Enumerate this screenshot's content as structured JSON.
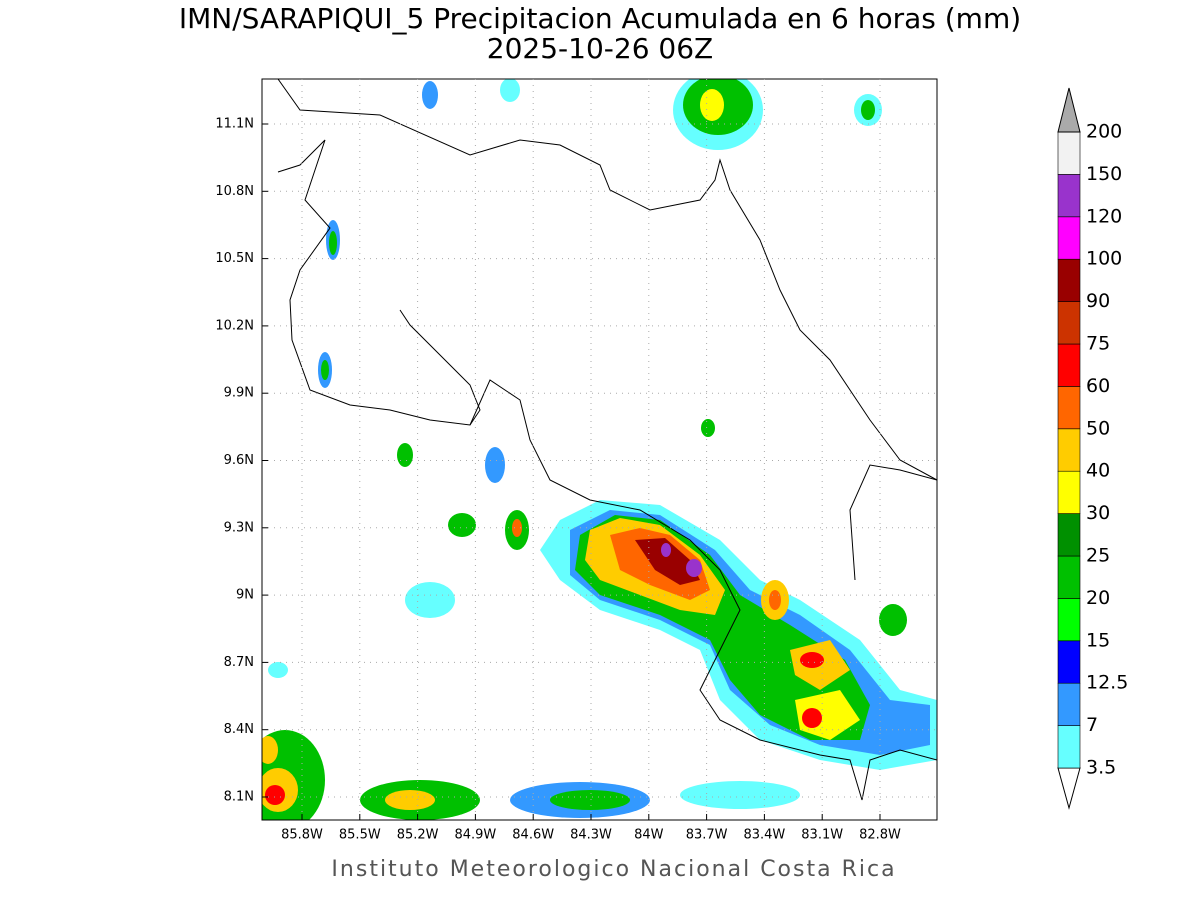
{
  "header": {
    "title": "IMN/SARAPIQUI_5 Precipitacion Acumulada en 6 horas (mm)",
    "subtitle": "2025-10-26 06Z"
  },
  "map": {
    "lon_ticks": [
      {
        "value": -85.8,
        "label": "85.8W"
      },
      {
        "value": -85.5,
        "label": "85.5W"
      },
      {
        "value": -85.2,
        "label": "85.2W"
      },
      {
        "value": -84.9,
        "label": "84.9W"
      },
      {
        "value": -84.6,
        "label": "84.6W"
      },
      {
        "value": -84.3,
        "label": "84.3W"
      },
      {
        "value": -84.0,
        "label": "84W"
      },
      {
        "value": -83.7,
        "label": "83.7W"
      },
      {
        "value": -83.4,
        "label": "83.4W"
      },
      {
        "value": -83.1,
        "label": "83.1W"
      },
      {
        "value": -82.8,
        "label": "82.8W"
      }
    ],
    "lat_ticks": [
      {
        "value": 11.1,
        "label": "11.1N"
      },
      {
        "value": 10.8,
        "label": "10.8N"
      },
      {
        "value": 10.5,
        "label": "10.5N"
      },
      {
        "value": 10.2,
        "label": "10.2N"
      },
      {
        "value": 9.9,
        "label": "9.9N"
      },
      {
        "value": 9.6,
        "label": "9.6N"
      },
      {
        "value": 9.3,
        "label": "9.3N"
      },
      {
        "value": 9.0,
        "label": "9N"
      },
      {
        "value": 8.7,
        "label": "8.7N"
      },
      {
        "value": 8.4,
        "label": "8.4N"
      },
      {
        "value": 8.1,
        "label": "8.1N"
      }
    ],
    "grid": true
  },
  "colorbar": {
    "levels": [
      3.5,
      7,
      12.5,
      15,
      20,
      25,
      30,
      40,
      50,
      60,
      75,
      90,
      100,
      120,
      150,
      200
    ],
    "colors": [
      "#66ffff",
      "#3399ff",
      "#0000ff",
      "#00ff00",
      "#00c000",
      "#009000",
      "#ffff00",
      "#ffcc00",
      "#ff6600",
      "#ff0000",
      "#cc3300",
      "#990000",
      "#ff00ff",
      "#9933cc",
      "#f2f2f2"
    ],
    "below_color": "#ffffff",
    "above_color": "#aaaaaa"
  },
  "footer": {
    "credit": "Instituto Meteorologico Nacional Costa Rica"
  }
}
